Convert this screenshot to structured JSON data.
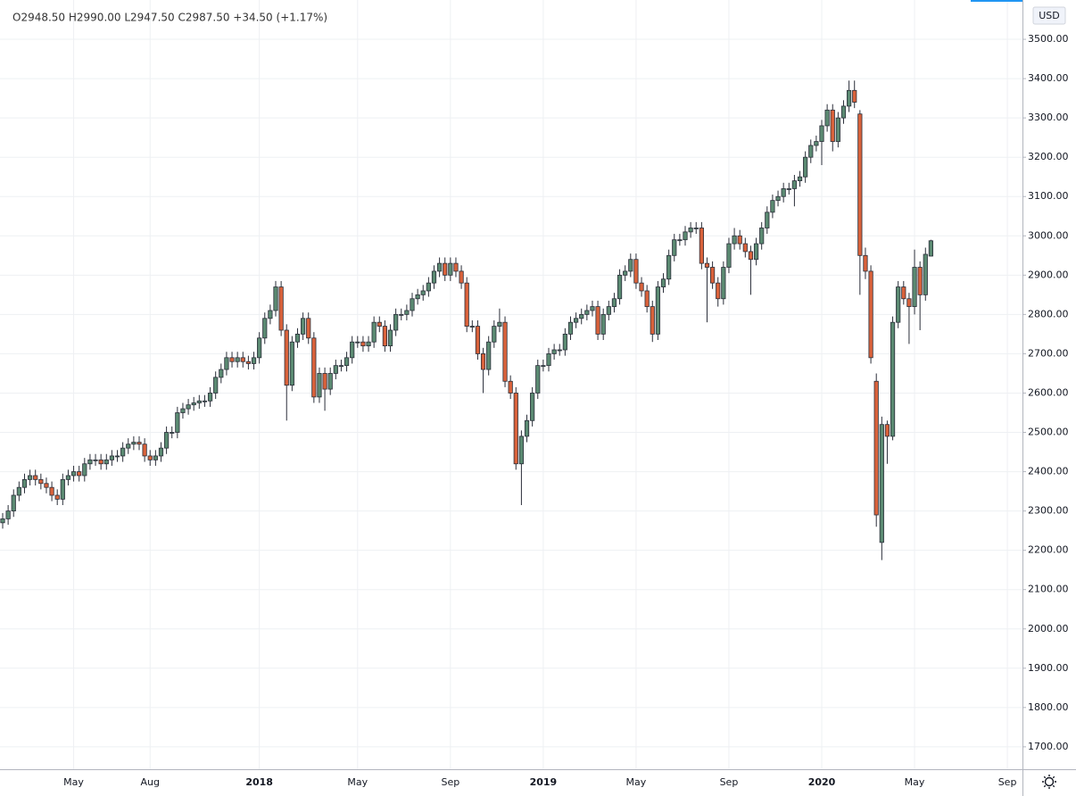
{
  "chart_data": {
    "type": "candlestick",
    "ohlc_legend": "O2948.50 H2990.00 L2947.50 C2987.50 +34.50 (+1.17%)",
    "currency": "USD",
    "up_color": "#5b8a72",
    "down_color": "#d9623b",
    "outline_color": "#2a2e39",
    "grid": true,
    "ylim": [
      1643,
      3600
    ],
    "yticks": [
      {
        "value": 1700,
        "label": "1700.00"
      },
      {
        "value": 1800,
        "label": "1800.00"
      },
      {
        "value": 1900,
        "label": "1900.00"
      },
      {
        "value": 2000,
        "label": "2000.00"
      },
      {
        "value": 2100,
        "label": "2100.00"
      },
      {
        "value": 2200,
        "label": "2200.00"
      },
      {
        "value": 2300,
        "label": "2300.00"
      },
      {
        "value": 2400,
        "label": "2400.00"
      },
      {
        "value": 2500,
        "label": "2500.00"
      },
      {
        "value": 2600,
        "label": "2600.00"
      },
      {
        "value": 2700,
        "label": "2700.00"
      },
      {
        "value": 2800,
        "label": "2800.00"
      },
      {
        "value": 2900,
        "label": "2900.00"
      },
      {
        "value": 3000,
        "label": "3000.00"
      },
      {
        "value": 3100,
        "label": "3100.00"
      },
      {
        "value": 3200,
        "label": "3200.00"
      },
      {
        "value": 3300,
        "label": "3300.00"
      },
      {
        "value": 3400,
        "label": "3400.00"
      },
      {
        "value": 3500,
        "label": "3500.00"
      }
    ],
    "categories": [
      null,
      null,
      null,
      null,
      null,
      null,
      null,
      null,
      null,
      null,
      null,
      null,
      null,
      "May",
      null,
      null,
      null,
      null,
      null,
      null,
      null,
      null,
      null,
      null,
      null,
      null,
      null,
      "Aug",
      null,
      null,
      null,
      null,
      null,
      null,
      null,
      null,
      null,
      null,
      null,
      null,
      null,
      null,
      null,
      null,
      null,
      null,
      null,
      "2018",
      null,
      null,
      null,
      null,
      null,
      null,
      null,
      null,
      null,
      null,
      null,
      null,
      null,
      null,
      null,
      null,
      null,
      "May",
      null,
      null,
      null,
      null,
      null,
      null,
      null,
      null,
      null,
      null,
      null,
      null,
      null,
      null,
      null,
      null,
      "Sep",
      null,
      null,
      null,
      null,
      null,
      null,
      null,
      null,
      null,
      null,
      null,
      null,
      null,
      null,
      null,
      null,
      "2019",
      null,
      null,
      null,
      null,
      null,
      null,
      null,
      null,
      null,
      null,
      null,
      null,
      null,
      null,
      null,
      null,
      "May",
      null,
      null,
      null,
      null,
      null,
      null,
      null,
      null,
      null,
      null,
      null,
      null,
      null,
      null,
      null,
      null,
      "Sep",
      null,
      null,
      null,
      null,
      null,
      null,
      null,
      null,
      null,
      null,
      null,
      null,
      null,
      null,
      null,
      null,
      "2020",
      null,
      null,
      null,
      null,
      null,
      null,
      null,
      null,
      null,
      null,
      null,
      null,
      null,
      null,
      null,
      null,
      "May",
      null,
      null,
      null,
      null,
      null,
      null,
      null,
      null,
      null,
      null,
      null,
      null,
      null,
      null,
      null,
      null,
      "Sep"
    ],
    "open": [
      2270,
      2280,
      2300,
      2340,
      2360,
      2380,
      2390,
      2380,
      2370,
      2360,
      2340,
      2330,
      2380,
      2390,
      2400,
      2390,
      2420,
      2430,
      2430,
      2420,
      2430,
      2440,
      2440,
      2460,
      2470,
      2475,
      2470,
      2440,
      2430,
      2440,
      2460,
      2500,
      2500,
      2550,
      2560,
      2570,
      2575,
      2580,
      2580,
      2600,
      2640,
      2660,
      2690,
      2680,
      2690,
      2680,
      2675,
      2690,
      2740,
      2790,
      2810,
      2870,
      2760,
      2620,
      2730,
      2750,
      2790,
      2740,
      2590,
      2650,
      2610,
      2650,
      2670,
      2670,
      2690,
      2730,
      2730,
      2720,
      2730,
      2780,
      2770,
      2720,
      2760,
      2800,
      2800,
      2810,
      2840,
      2850,
      2860,
      2880,
      2910,
      2930,
      2900,
      2930,
      2910,
      2880,
      2770,
      2770,
      2700,
      2660,
      2730,
      2770,
      2780,
      2630,
      2600,
      2420,
      2490,
      2530,
      2600,
      2670,
      2670,
      2700,
      2710,
      2710,
      2750,
      2780,
      2790,
      2800,
      2810,
      2820,
      2750,
      2800,
      2820,
      2840,
      2900,
      2910,
      2940,
      2880,
      2860,
      2820,
      2750,
      2870,
      2890,
      2950,
      2990,
      2990,
      3010,
      3020,
      3020,
      2930,
      2920,
      2880,
      2840,
      2920,
      2980,
      3000,
      2980,
      2960,
      2940,
      2980,
      3020,
      3060,
      3090,
      3100,
      3120,
      3120,
      3140,
      3150,
      3200,
      3230,
      3240,
      3280,
      3320,
      3240,
      3300,
      3330,
      3370,
      3310,
      2950,
      2910,
      2630,
      2220,
      2520,
      2490,
      2780,
      2870,
      2840,
      2820,
      2920,
      2850,
      2948.5,
      null,
      null,
      null,
      null,
      null,
      null,
      null,
      null,
      null,
      null,
      null,
      null,
      null,
      null
    ],
    "high": [
      2295,
      2315,
      2355,
      2375,
      2395,
      2405,
      2405,
      2395,
      2385,
      2375,
      2355,
      2395,
      2405,
      2415,
      2415,
      2435,
      2445,
      2445,
      2445,
      2445,
      2455,
      2455,
      2475,
      2485,
      2490,
      2490,
      2485,
      2455,
      2455,
      2475,
      2515,
      2515,
      2565,
      2575,
      2585,
      2590,
      2595,
      2595,
      2615,
      2655,
      2675,
      2705,
      2705,
      2705,
      2705,
      2695,
      2705,
      2755,
      2805,
      2825,
      2885,
      2885,
      2775,
      2745,
      2765,
      2805,
      2805,
      2755,
      2665,
      2665,
      2665,
      2685,
      2685,
      2705,
      2745,
      2745,
      2745,
      2745,
      2795,
      2795,
      2785,
      2775,
      2815,
      2815,
      2825,
      2855,
      2865,
      2875,
      2895,
      2925,
      2945,
      2945,
      2945,
      2945,
      2925,
      2895,
      2785,
      2785,
      2715,
      2745,
      2785,
      2815,
      2795,
      2645,
      2615,
      2505,
      2545,
      2615,
      2685,
      2685,
      2715,
      2725,
      2725,
      2765,
      2795,
      2805,
      2815,
      2825,
      2835,
      2835,
      2815,
      2835,
      2855,
      2915,
      2925,
      2955,
      2955,
      2895,
      2875,
      2835,
      2885,
      2905,
      2965,
      3005,
      3005,
      3025,
      3035,
      3035,
      3035,
      2945,
      2935,
      2895,
      2935,
      2995,
      3020,
      3015,
      2995,
      2975,
      2995,
      3035,
      3075,
      3105,
      3115,
      3135,
      3135,
      3155,
      3165,
      3215,
      3245,
      3255,
      3295,
      3335,
      3335,
      3315,
      3345,
      3395,
      3395,
      3320,
      2970,
      2925,
      2650,
      2540,
      2530,
      2795,
      2885,
      2885,
      2855,
      2965,
      2935,
      2970,
      2990,
      null,
      null,
      null,
      null,
      null,
      null,
      null,
      null,
      null,
      null,
      null,
      null,
      null,
      null
    ],
    "low": [
      2255,
      2265,
      2285,
      2325,
      2345,
      2365,
      2365,
      2355,
      2345,
      2325,
      2315,
      2315,
      2365,
      2375,
      2375,
      2375,
      2405,
      2415,
      2405,
      2405,
      2415,
      2425,
      2425,
      2445,
      2455,
      2455,
      2425,
      2415,
      2415,
      2425,
      2445,
      2485,
      2485,
      2535,
      2545,
      2555,
      2560,
      2565,
      2565,
      2585,
      2625,
      2645,
      2665,
      2665,
      2665,
      2660,
      2660,
      2675,
      2725,
      2775,
      2795,
      2745,
      2530,
      2605,
      2715,
      2735,
      2725,
      2575,
      2575,
      2555,
      2595,
      2635,
      2655,
      2655,
      2675,
      2715,
      2705,
      2705,
      2715,
      2755,
      2705,
      2705,
      2745,
      2785,
      2785,
      2795,
      2825,
      2835,
      2845,
      2865,
      2895,
      2885,
      2885,
      2895,
      2865,
      2755,
      2755,
      2685,
      2600,
      2645,
      2715,
      2755,
      2615,
      2585,
      2405,
      2315,
      2475,
      2515,
      2585,
      2655,
      2655,
      2685,
      2695,
      2695,
      2735,
      2765,
      2775,
      2785,
      2795,
      2735,
      2735,
      2785,
      2805,
      2825,
      2885,
      2895,
      2865,
      2845,
      2805,
      2730,
      2735,
      2855,
      2875,
      2935,
      2975,
      2975,
      2995,
      3005,
      2915,
      2780,
      2865,
      2820,
      2825,
      2905,
      2965,
      2965,
      2945,
      2850,
      2925,
      2965,
      3005,
      3045,
      3075,
      3085,
      3105,
      3075,
      3125,
      3135,
      3185,
      3215,
      3180,
      3265,
      3215,
      3225,
      3285,
      3315,
      3325,
      2850,
      2890,
      2675,
      2260,
      2175,
      2420,
      2480,
      2765,
      2825,
      2725,
      2800,
      2760,
      2835,
      2947.5,
      null,
      null,
      null,
      null,
      null,
      null,
      null,
      null,
      null,
      null,
      null,
      null,
      null,
      null
    ],
    "close": [
      2280,
      2300,
      2340,
      2360,
      2380,
      2390,
      2380,
      2370,
      2360,
      2340,
      2330,
      2380,
      2390,
      2400,
      2390,
      2420,
      2430,
      2430,
      2420,
      2430,
      2440,
      2440,
      2460,
      2470,
      2475,
      2470,
      2440,
      2430,
      2440,
      2460,
      2500,
      2500,
      2550,
      2560,
      2570,
      2575,
      2580,
      2580,
      2600,
      2640,
      2660,
      2690,
      2680,
      2690,
      2680,
      2675,
      2690,
      2740,
      2790,
      2810,
      2870,
      2760,
      2620,
      2730,
      2750,
      2790,
      2740,
      2590,
      2650,
      2610,
      2650,
      2670,
      2670,
      2690,
      2730,
      2730,
      2720,
      2730,
      2780,
      2770,
      2720,
      2760,
      2800,
      2800,
      2810,
      2840,
      2850,
      2860,
      2880,
      2910,
      2930,
      2900,
      2930,
      2910,
      2880,
      2770,
      2770,
      2700,
      2660,
      2730,
      2770,
      2780,
      2630,
      2600,
      2420,
      2490,
      2530,
      2600,
      2670,
      2670,
      2700,
      2710,
      2710,
      2750,
      2780,
      2790,
      2800,
      2810,
      2820,
      2750,
      2800,
      2820,
      2840,
      2900,
      2910,
      2940,
      2880,
      2860,
      2820,
      2750,
      2870,
      2890,
      2950,
      2990,
      2990,
      3010,
      3020,
      3020,
      2930,
      2920,
      2880,
      2840,
      2920,
      2980,
      3000,
      2980,
      2960,
      2940,
      2980,
      3020,
      3060,
      3090,
      3100,
      3120,
      3120,
      3140,
      3150,
      3200,
      3230,
      3240,
      3280,
      3320,
      3240,
      3300,
      3330,
      3370,
      3340,
      2950,
      2910,
      2690,
      2290,
      2520,
      2490,
      2780,
      2870,
      2840,
      2820,
      2920,
      2850,
      2953,
      2987.5,
      null,
      null,
      null,
      null,
      null,
      null,
      null,
      null,
      null,
      null,
      null,
      null,
      null,
      null
    ]
  }
}
